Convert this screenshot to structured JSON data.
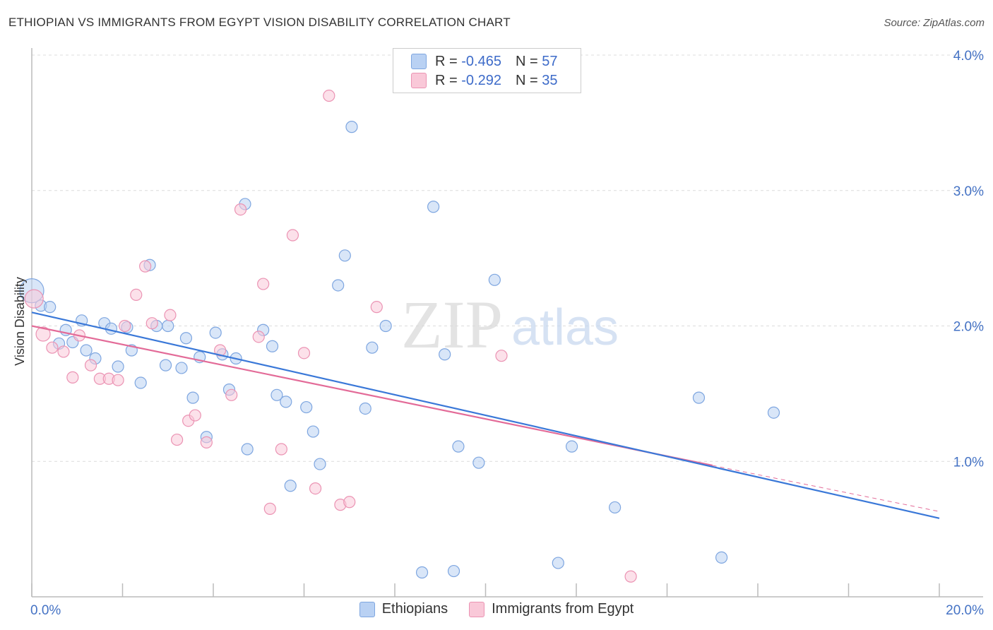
{
  "header": {
    "title": "ETHIOPIAN VS IMMIGRANTS FROM EGYPT VISION DISABILITY CORRELATION CHART",
    "source": "Source: ZipAtlas.com"
  },
  "legend": {
    "rows": [
      {
        "r_label": "R =",
        "r_value": "-0.465",
        "n_label": "N =",
        "n_value": "57"
      },
      {
        "r_label": "R =",
        "r_value": "-0.292",
        "n_label": "N =",
        "n_value": "35"
      }
    ]
  },
  "watermark": {
    "zip": "ZIP",
    "atlas": "atlas"
  },
  "colors": {
    "blue": "#3a78d8",
    "blue_fill": "#b9d1f3",
    "blue_stroke": "#7ea6e0",
    "pink": "#e36b98",
    "pink_fill": "#f9c8d8",
    "pink_stroke": "#eb93b3"
  },
  "chart_data": {
    "type": "scatter",
    "title": "ETHIOPIAN VS IMMIGRANTS FROM EGYPT VISION DISABILITY CORRELATION CHART",
    "xlabel": "",
    "ylabel": "Vision Disability",
    "xlim": [
      0,
      20
    ],
    "ylim": [
      0,
      4.0
    ],
    "x_ticks": [
      "0.0%",
      "20.0%"
    ],
    "y_ticks": [
      "1.0%",
      "2.0%",
      "3.0%",
      "4.0%"
    ],
    "y_tick_values": [
      1.0,
      2.0,
      3.0,
      4.0
    ],
    "grid": true,
    "legend_position": "top-center",
    "series": [
      {
        "name": "Ethiopians",
        "color": "#3a78d8",
        "R": -0.465,
        "N": 57,
        "trend": {
          "x": [
            0,
            20
          ],
          "y": [
            2.1,
            0.58
          ]
        },
        "points": [
          [
            0.0,
            2.26
          ],
          [
            0.2,
            2.15
          ],
          [
            0.4,
            2.14
          ],
          [
            0.6,
            1.87
          ],
          [
            0.75,
            1.97
          ],
          [
            0.9,
            1.88
          ],
          [
            1.1,
            2.04
          ],
          [
            1.2,
            1.82
          ],
          [
            1.4,
            1.76
          ],
          [
            1.6,
            2.02
          ],
          [
            1.75,
            1.98
          ],
          [
            1.9,
            1.7
          ],
          [
            2.1,
            1.99
          ],
          [
            2.2,
            1.82
          ],
          [
            2.4,
            1.58
          ],
          [
            2.6,
            2.45
          ],
          [
            2.75,
            2.0
          ],
          [
            2.95,
            1.71
          ],
          [
            3.0,
            2.0
          ],
          [
            3.3,
            1.69
          ],
          [
            3.4,
            1.91
          ],
          [
            3.55,
            1.47
          ],
          [
            3.7,
            1.77
          ],
          [
            3.85,
            1.18
          ],
          [
            4.05,
            1.95
          ],
          [
            4.2,
            1.79
          ],
          [
            4.35,
            1.53
          ],
          [
            4.5,
            1.76
          ],
          [
            4.7,
            2.9
          ],
          [
            4.75,
            1.09
          ],
          [
            5.1,
            1.97
          ],
          [
            5.3,
            1.85
          ],
          [
            5.4,
            1.49
          ],
          [
            5.6,
            1.44
          ],
          [
            5.7,
            0.82
          ],
          [
            6.05,
            1.4
          ],
          [
            6.2,
            1.22
          ],
          [
            6.35,
            0.98
          ],
          [
            6.75,
            2.3
          ],
          [
            6.9,
            2.52
          ],
          [
            7.05,
            3.47
          ],
          [
            7.35,
            1.39
          ],
          [
            7.5,
            1.84
          ],
          [
            7.8,
            2.0
          ],
          [
            8.6,
            0.18
          ],
          [
            8.85,
            2.88
          ],
          [
            9.1,
            1.79
          ],
          [
            9.3,
            0.19
          ],
          [
            9.4,
            1.11
          ],
          [
            9.85,
            0.99
          ],
          [
            10.2,
            2.34
          ],
          [
            11.6,
            0.25
          ],
          [
            11.9,
            1.11
          ],
          [
            12.85,
            0.66
          ],
          [
            14.7,
            1.47
          ],
          [
            15.2,
            0.29
          ],
          [
            16.35,
            1.36
          ]
        ]
      },
      {
        "name": "Immigrants from Egypt",
        "color": "#e36b98",
        "R": -0.292,
        "N": 35,
        "trend": {
          "x": [
            0,
            15
          ],
          "y": [
            2.0,
            0.97
          ]
        },
        "trend_dashed": {
          "x": [
            15,
            20
          ],
          "y": [
            0.97,
            0.63
          ]
        },
        "points": [
          [
            0.05,
            2.2
          ],
          [
            0.25,
            1.94
          ],
          [
            0.45,
            1.84
          ],
          [
            0.7,
            1.81
          ],
          [
            0.9,
            1.62
          ],
          [
            1.05,
            1.93
          ],
          [
            1.3,
            1.71
          ],
          [
            1.5,
            1.61
          ],
          [
            1.7,
            1.61
          ],
          [
            1.9,
            1.6
          ],
          [
            2.05,
            2.0
          ],
          [
            2.3,
            2.23
          ],
          [
            2.5,
            2.44
          ],
          [
            2.65,
            2.02
          ],
          [
            3.05,
            2.08
          ],
          [
            3.2,
            1.16
          ],
          [
            3.45,
            1.3
          ],
          [
            3.6,
            1.34
          ],
          [
            3.85,
            1.14
          ],
          [
            4.15,
            1.82
          ],
          [
            4.4,
            1.49
          ],
          [
            4.6,
            2.86
          ],
          [
            5.0,
            1.92
          ],
          [
            5.1,
            2.31
          ],
          [
            5.25,
            0.65
          ],
          [
            5.5,
            1.09
          ],
          [
            5.75,
            2.67
          ],
          [
            6.0,
            1.8
          ],
          [
            6.25,
            0.8
          ],
          [
            6.55,
            3.7
          ],
          [
            6.8,
            0.68
          ],
          [
            7.0,
            0.7
          ],
          [
            7.6,
            2.14
          ],
          [
            10.35,
            1.78
          ],
          [
            13.2,
            0.15
          ]
        ]
      }
    ]
  },
  "bottom_legend": {
    "items": [
      "Ethiopians",
      "Immigrants from Egypt"
    ]
  }
}
